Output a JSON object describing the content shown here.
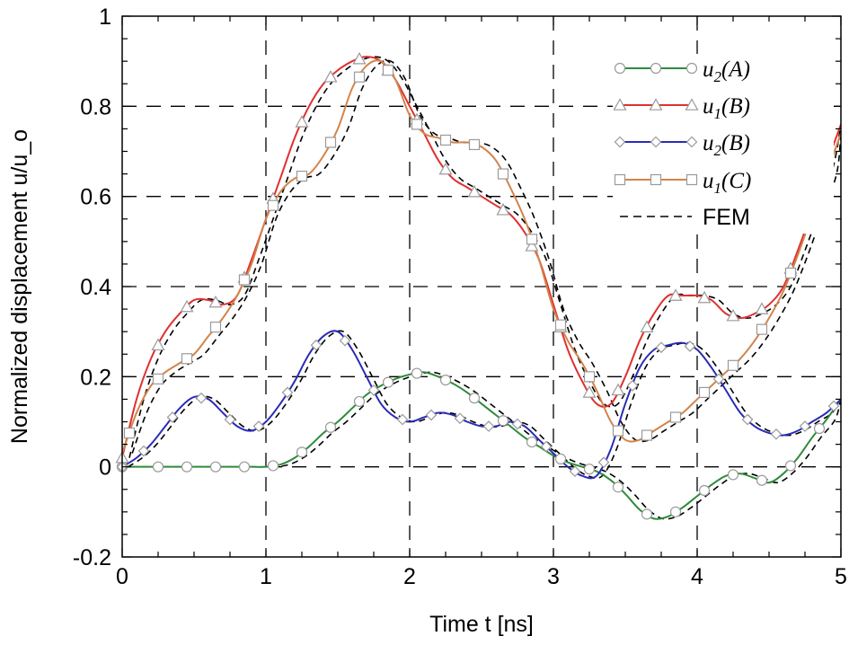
{
  "chart_data": {
    "type": "line",
    "title": "",
    "xlabel": "Time t [ns]",
    "ylabel": "Normalized displacement u/u_o",
    "xlim": [
      0,
      5
    ],
    "ylim": [
      -0.2,
      1
    ],
    "x_ticks": [
      "0",
      "1",
      "2",
      "3",
      "4",
      "5"
    ],
    "y_ticks": [
      "-0.2",
      "0",
      "0.2",
      "0.4",
      "0.6",
      "0.8",
      "1"
    ],
    "grid": "dashed",
    "legend_position": "top-right",
    "series": [
      {
        "name": "u2(A)",
        "label_main": "u",
        "label_sub": "2",
        "label_arg": "(A)",
        "color": "#2e8b3a",
        "marker": "circle",
        "x": [
          0,
          0.1,
          0.2,
          0.3,
          0.4,
          0.5,
          0.6,
          0.7,
          0.8,
          0.9,
          1.0,
          1.1,
          1.2,
          1.3,
          1.4,
          1.5,
          1.6,
          1.7,
          1.8,
          1.9,
          2.0,
          2.1,
          2.2,
          2.3,
          2.4,
          2.5,
          2.6,
          2.7,
          2.8,
          2.9,
          3.0,
          3.1,
          3.2,
          3.3,
          3.4,
          3.5,
          3.6,
          3.7,
          3.8,
          3.9,
          4.0,
          4.1,
          4.2,
          4.3,
          4.4,
          4.5,
          4.6,
          4.7,
          4.8,
          4.9,
          5.0
        ],
        "values": [
          0,
          0,
          0,
          0,
          0,
          0,
          0,
          0,
          0,
          0,
          0,
          0.005,
          0.02,
          0.045,
          0.075,
          0.1,
          0.13,
          0.16,
          0.18,
          0.195,
          0.205,
          0.21,
          0.2,
          0.185,
          0.165,
          0.14,
          0.115,
          0.09,
          0.065,
          0.045,
          0.025,
          0.01,
          0.0,
          -0.01,
          -0.03,
          -0.06,
          -0.095,
          -0.115,
          -0.11,
          -0.09,
          -0.065,
          -0.04,
          -0.02,
          -0.015,
          -0.025,
          -0.035,
          -0.015,
          0.02,
          0.065,
          0.105,
          0.15
        ],
        "marker_x": [
          0,
          0.25,
          0.45,
          0.65,
          0.85,
          1.05,
          1.25,
          1.45,
          1.65,
          1.85,
          2.05,
          2.25,
          2.45,
          2.65,
          2.85,
          3.05,
          3.25,
          3.45,
          3.65,
          3.85,
          4.05,
          4.25,
          4.45,
          4.65,
          4.85
        ]
      },
      {
        "name": "u1(B)",
        "label_main": "u",
        "label_sub": "1",
        "label_arg": "(B)",
        "color": "#e03030",
        "marker": "triangle",
        "x": [
          0,
          0.1,
          0.2,
          0.3,
          0.4,
          0.5,
          0.6,
          0.7,
          0.8,
          0.9,
          1.0,
          1.1,
          1.2,
          1.3,
          1.4,
          1.5,
          1.6,
          1.7,
          1.8,
          1.9,
          2.0,
          2.1,
          2.2,
          2.3,
          2.4,
          2.5,
          2.6,
          2.7,
          2.8,
          2.9,
          3.0,
          3.1,
          3.2,
          3.3,
          3.4,
          3.5,
          3.6,
          3.7,
          3.8,
          3.9,
          4.0,
          4.1,
          4.2,
          4.3,
          4.4,
          4.5,
          4.6,
          4.7,
          4.8,
          4.9,
          5.0
        ],
        "values": [
          0.02,
          0.15,
          0.24,
          0.3,
          0.34,
          0.37,
          0.37,
          0.36,
          0.38,
          0.46,
          0.55,
          0.64,
          0.73,
          0.8,
          0.85,
          0.88,
          0.9,
          0.91,
          0.9,
          0.86,
          0.8,
          0.74,
          0.68,
          0.64,
          0.62,
          0.6,
          0.58,
          0.56,
          0.52,
          0.46,
          0.36,
          0.26,
          0.19,
          0.14,
          0.14,
          0.2,
          0.28,
          0.34,
          0.38,
          0.38,
          0.38,
          0.37,
          0.34,
          0.33,
          0.34,
          0.36,
          0.4,
          0.48,
          0.57,
          0.67,
          0.76
        ],
        "marker_x": [
          0,
          0.25,
          0.45,
          0.65,
          0.85,
          1.05,
          1.25,
          1.45,
          1.65,
          1.85,
          2.05,
          2.25,
          2.45,
          2.65,
          2.85,
          3.05,
          3.25,
          3.45,
          3.65,
          3.85,
          4.05,
          4.25,
          4.45,
          4.65,
          4.85
        ]
      },
      {
        "name": "u2(B)",
        "label_main": "u",
        "label_sub": "2",
        "label_arg": "(B)",
        "color": "#2a2ab8",
        "marker": "diamond",
        "x": [
          0,
          0.1,
          0.2,
          0.3,
          0.4,
          0.5,
          0.6,
          0.7,
          0.8,
          0.9,
          1.0,
          1.1,
          1.2,
          1.3,
          1.4,
          1.5,
          1.6,
          1.7,
          1.8,
          1.9,
          2.0,
          2.1,
          2.2,
          2.3,
          2.4,
          2.5,
          2.6,
          2.7,
          2.8,
          2.9,
          3.0,
          3.1,
          3.2,
          3.3,
          3.4,
          3.5,
          3.6,
          3.7,
          3.8,
          3.9,
          4.0,
          4.1,
          4.2,
          4.3,
          4.4,
          4.5,
          4.6,
          4.7,
          4.8,
          4.9,
          5.0
        ],
        "values": [
          0,
          0.02,
          0.05,
          0.09,
          0.13,
          0.155,
          0.15,
          0.12,
          0.09,
          0.08,
          0.1,
          0.14,
          0.19,
          0.25,
          0.29,
          0.3,
          0.26,
          0.2,
          0.14,
          0.11,
          0.1,
          0.11,
          0.12,
          0.115,
          0.1,
          0.09,
          0.09,
          0.1,
          0.09,
          0.06,
          0.03,
          0.0,
          -0.02,
          -0.02,
          0.04,
          0.14,
          0.22,
          0.26,
          0.27,
          0.275,
          0.26,
          0.22,
          0.17,
          0.12,
          0.09,
          0.075,
          0.07,
          0.08,
          0.1,
          0.12,
          0.15
        ],
        "marker_x": [
          0,
          0.15,
          0.35,
          0.55,
          0.75,
          0.95,
          1.15,
          1.35,
          1.55,
          1.75,
          1.95,
          2.15,
          2.35,
          2.55,
          2.75,
          2.95,
          3.15,
          3.35,
          3.55,
          3.75,
          3.95,
          4.15,
          4.35,
          4.55,
          4.75,
          4.95
        ]
      },
      {
        "name": "u1(C)",
        "label_main": "u",
        "label_sub": "1",
        "label_arg": "(C)",
        "color": "#d2844a",
        "marker": "square",
        "x": [
          0,
          0.1,
          0.2,
          0.3,
          0.4,
          0.5,
          0.6,
          0.7,
          0.8,
          0.9,
          1.0,
          1.1,
          1.2,
          1.3,
          1.4,
          1.5,
          1.6,
          1.7,
          1.8,
          1.9,
          2.0,
          2.1,
          2.2,
          2.3,
          2.4,
          2.5,
          2.6,
          2.7,
          2.8,
          2.9,
          3.0,
          3.1,
          3.2,
          3.3,
          3.4,
          3.5,
          3.6,
          3.7,
          3.8,
          3.9,
          4.0,
          4.1,
          4.2,
          4.3,
          4.4,
          4.5,
          4.6,
          4.7,
          4.8,
          4.9,
          5.0
        ],
        "values": [
          0.03,
          0.12,
          0.18,
          0.21,
          0.23,
          0.25,
          0.29,
          0.33,
          0.38,
          0.45,
          0.55,
          0.61,
          0.64,
          0.65,
          0.69,
          0.75,
          0.84,
          0.89,
          0.9,
          0.86,
          0.78,
          0.74,
          0.73,
          0.72,
          0.72,
          0.71,
          0.68,
          0.62,
          0.55,
          0.46,
          0.35,
          0.28,
          0.23,
          0.17,
          0.1,
          0.06,
          0.06,
          0.08,
          0.1,
          0.12,
          0.15,
          0.18,
          0.21,
          0.24,
          0.28,
          0.33,
          0.39,
          0.47,
          0.56,
          0.65,
          0.74
        ],
        "marker_x": [
          0.05,
          0.25,
          0.45,
          0.65,
          0.85,
          1.05,
          1.25,
          1.45,
          1.65,
          1.85,
          2.05,
          2.25,
          2.45,
          2.65,
          2.85,
          3.05,
          3.25,
          3.45,
          3.65,
          3.85,
          4.05,
          4.25,
          4.45,
          4.65,
          4.85
        ]
      },
      {
        "name": "FEM",
        "color": "#000000",
        "marker": "none",
        "style": "dashed"
      }
    ]
  }
}
